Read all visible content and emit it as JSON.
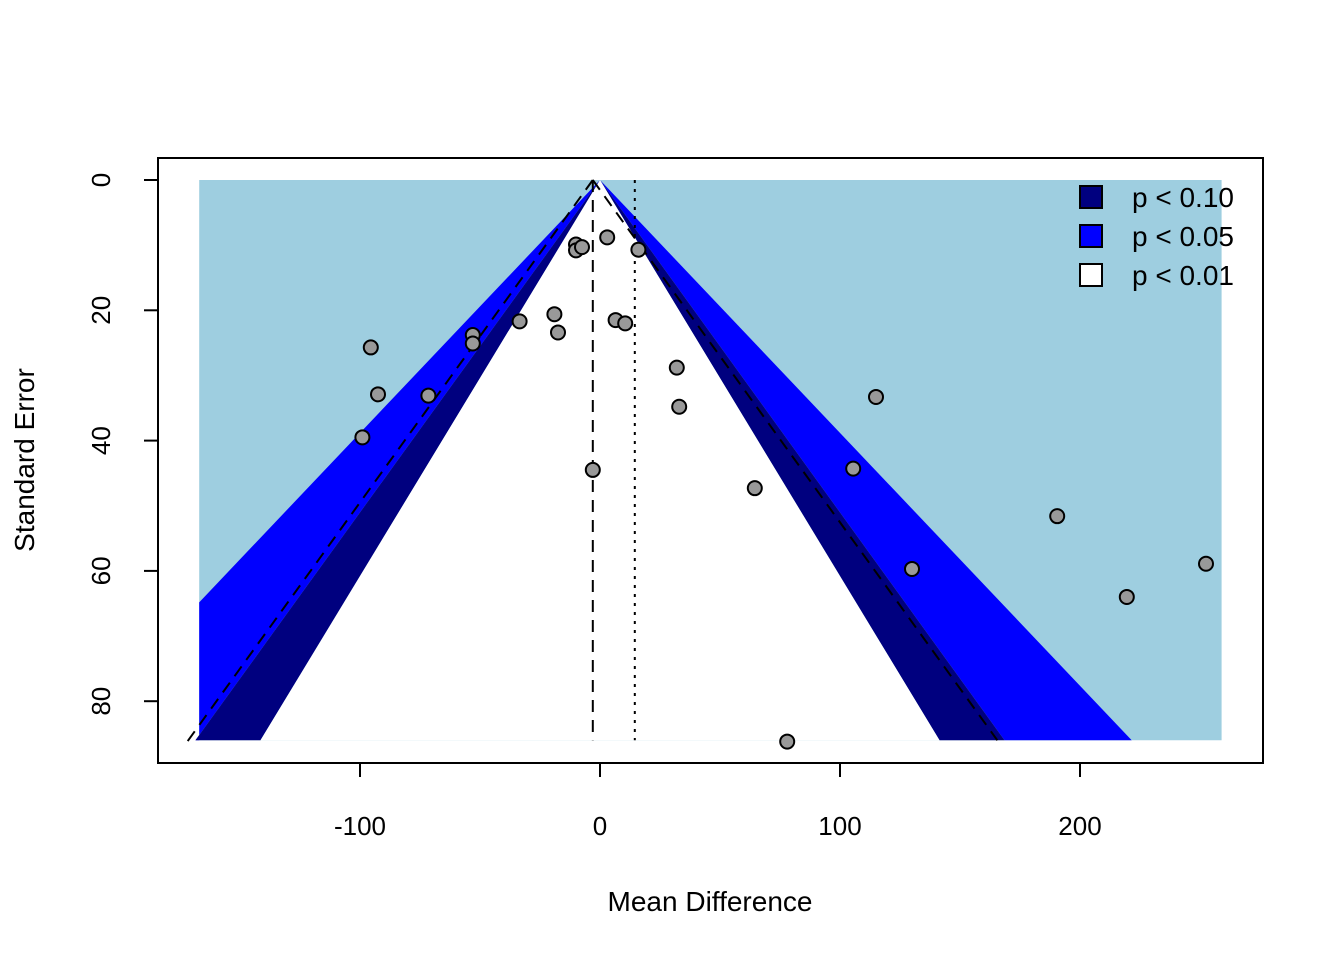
{
  "chart_data": {
    "type": "scatter",
    "subtype": "contour-enhanced funnel plot",
    "title": "",
    "xlabel": "Mean Difference",
    "ylabel": "Standard Error",
    "xlim": [
      -185,
      275
    ],
    "ylim": [
      0,
      86
    ],
    "y_reversed": true,
    "x_ticks": [
      "-100",
      "0",
      "100",
      "200"
    ],
    "x_tick_values": [
      -100,
      0,
      100,
      200
    ],
    "y_ticks": [
      "0",
      "20",
      "40",
      "60",
      "80"
    ],
    "y_tick_values": [
      0,
      20,
      40,
      60,
      80
    ],
    "grid": false,
    "legend_position": "top-right",
    "legend": [
      {
        "label": "p < 0.10",
        "color": "#00007f"
      },
      {
        "label": "p < 0.05",
        "color": "#0000ff"
      },
      {
        "label": "p < 0.01",
        "color": "#ffffff"
      }
    ],
    "colors": {
      "region_outer": "#9ecee0",
      "region_p05": "#0000ff",
      "region_p10": "#00007f",
      "region_inner": "#ffffff",
      "point_fill": "#999999",
      "point_stroke": "#000000"
    },
    "region_x_range": [
      -167,
      259
    ],
    "contour_z": {
      "p10": 1.645,
      "p05": 1.96,
      "p01": 2.576
    },
    "pooled_estimate": -3,
    "reference_line": 14.5,
    "points": [
      {
        "x": -99,
        "y": 39.5
      },
      {
        "x": -95.5,
        "y": 25.7
      },
      {
        "x": -92.5,
        "y": 32.9
      },
      {
        "x": -71.5,
        "y": 33.1
      },
      {
        "x": -53,
        "y": 23.8
      },
      {
        "x": -53,
        "y": 25.1
      },
      {
        "x": -33.5,
        "y": 21.7
      },
      {
        "x": -19,
        "y": 20.6
      },
      {
        "x": -17.5,
        "y": 23.4
      },
      {
        "x": -10,
        "y": 9.9
      },
      {
        "x": -10,
        "y": 10.8
      },
      {
        "x": -7.5,
        "y": 10.3
      },
      {
        "x": -3,
        "y": 44.5
      },
      {
        "x": 3,
        "y": 8.8
      },
      {
        "x": 6.5,
        "y": 21.5
      },
      {
        "x": 10.5,
        "y": 22.0
      },
      {
        "x": 16,
        "y": 10.7
      },
      {
        "x": 32,
        "y": 28.8
      },
      {
        "x": 33,
        "y": 34.8
      },
      {
        "x": 64.5,
        "y": 47.3
      },
      {
        "x": 78,
        "y": 86.2
      },
      {
        "x": 105.5,
        "y": 44.3
      },
      {
        "x": 115,
        "y": 33.3
      },
      {
        "x": 130,
        "y": 59.7
      },
      {
        "x": 190.5,
        "y": 51.6
      },
      {
        "x": 219.5,
        "y": 64.0
      },
      {
        "x": 252.5,
        "y": 58.9
      }
    ]
  }
}
